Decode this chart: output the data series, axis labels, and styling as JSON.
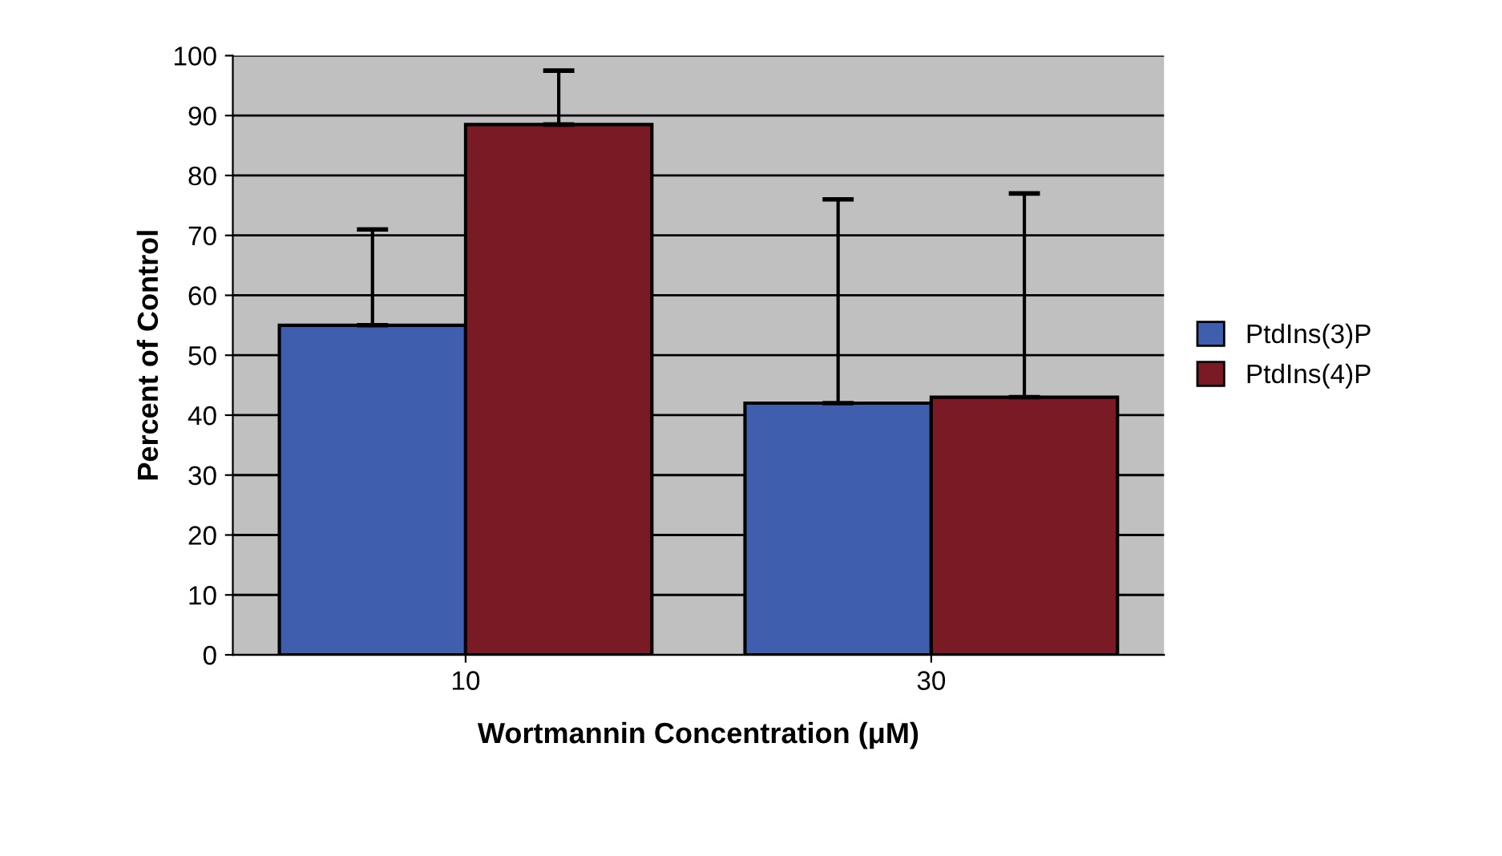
{
  "chart_data": {
    "type": "bar",
    "xlabel": "Wortmannin Concentration (μM)",
    "ylabel": "Percent of Control",
    "categories": [
      "10",
      "30"
    ],
    "series": [
      {
        "name": "PtdIns(3)P",
        "color": "#3f5fae",
        "values": [
          55,
          42
        ],
        "errors": [
          [
            55,
            71
          ],
          [
            42,
            76
          ]
        ]
      },
      {
        "name": "PtdIns(4)P",
        "color": "#7a1a24",
        "values": [
          88.5,
          43
        ],
        "errors": [
          [
            88.5,
            97.5
          ],
          [
            43,
            77
          ]
        ]
      }
    ],
    "ylim": [
      0,
      100
    ],
    "yticks": [
      0,
      10,
      20,
      30,
      40,
      50,
      60,
      70,
      80,
      90,
      100
    ],
    "grid": "y",
    "legend": "right"
  }
}
